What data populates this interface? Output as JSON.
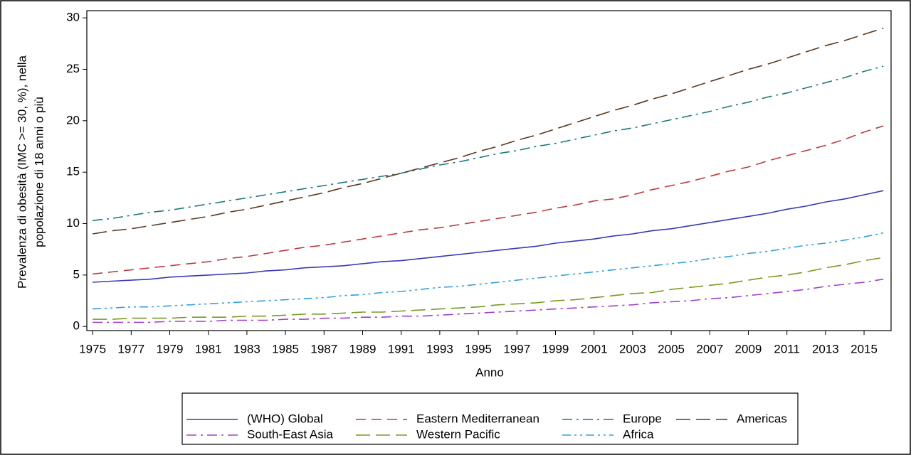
{
  "chart_data": {
    "type": "line",
    "y_label": [
      "Prevalenza di obesità (IMC >= 30, %),  nella",
      "popolazione di 18 anni o più"
    ],
    "x_label": "Anno",
    "x": [
      1975,
      1976,
      1977,
      1978,
      1979,
      1980,
      1981,
      1982,
      1983,
      1984,
      1985,
      1986,
      1987,
      1988,
      1989,
      1990,
      1991,
      1992,
      1993,
      1994,
      1995,
      1996,
      1997,
      1998,
      1999,
      2000,
      2001,
      2002,
      2003,
      2004,
      2005,
      2006,
      2007,
      2008,
      2009,
      2010,
      2011,
      2012,
      2013,
      2014,
      2015,
      2016
    ],
    "xlim": [
      1974.7,
      2016.4
    ],
    "xticks": [
      1975,
      1977,
      1979,
      1981,
      1983,
      1985,
      1987,
      1989,
      1991,
      1993,
      1995,
      1997,
      1999,
      2001,
      2003,
      2005,
      2007,
      2009,
      2011,
      2013,
      2015
    ],
    "ylim": [
      -0.4,
      30.7
    ],
    "yticks": [
      0,
      5,
      10,
      15,
      20,
      25,
      30
    ],
    "series": [
      {
        "name": "(WHO) Global",
        "color": "#3a3ab4",
        "style": "solid",
        "values": [
          4.3,
          4.4,
          4.5,
          4.6,
          4.8,
          4.9,
          5.0,
          5.1,
          5.2,
          5.4,
          5.5,
          5.7,
          5.8,
          5.9,
          6.1,
          6.3,
          6.4,
          6.6,
          6.8,
          7.0,
          7.2,
          7.4,
          7.6,
          7.8,
          8.1,
          8.3,
          8.5,
          8.8,
          9.0,
          9.3,
          9.5,
          9.8,
          10.1,
          10.4,
          10.7,
          11.0,
          11.4,
          11.7,
          12.1,
          12.4,
          12.8,
          13.2
        ]
      },
      {
        "name": "Eastern Mediterranean",
        "color": "#c0383e",
        "style": "dash",
        "values": [
          5.1,
          5.3,
          5.5,
          5.7,
          5.9,
          6.1,
          6.3,
          6.6,
          6.8,
          7.1,
          7.4,
          7.7,
          7.9,
          8.2,
          8.5,
          8.8,
          9.1,
          9.4,
          9.6,
          9.9,
          10.2,
          10.5,
          10.8,
          11.1,
          11.5,
          11.8,
          12.2,
          12.4,
          12.8,
          13.3,
          13.7,
          14.1,
          14.6,
          15.1,
          15.5,
          16.1,
          16.6,
          17.1,
          17.6,
          18.2,
          18.9,
          19.5
        ]
      },
      {
        "name": "Europe",
        "color": "#1a7a78",
        "style": "dashdot",
        "values": [
          10.3,
          10.5,
          10.8,
          11.1,
          11.3,
          11.6,
          11.9,
          12.2,
          12.5,
          12.8,
          13.1,
          13.4,
          13.7,
          14.0,
          14.3,
          14.6,
          14.9,
          15.3,
          15.7,
          16.0,
          16.4,
          16.8,
          17.1,
          17.5,
          17.8,
          18.2,
          18.6,
          19.0,
          19.3,
          19.7,
          20.1,
          20.5,
          20.9,
          21.4,
          21.8,
          22.3,
          22.7,
          23.2,
          23.7,
          24.2,
          24.8,
          25.3
        ]
      },
      {
        "name": "Americas",
        "color": "#5b3a1f",
        "style": "longdash",
        "values": [
          9.0,
          9.3,
          9.5,
          9.8,
          10.1,
          10.4,
          10.7,
          11.1,
          11.4,
          11.8,
          12.2,
          12.6,
          13.0,
          13.5,
          13.9,
          14.4,
          14.9,
          15.4,
          15.9,
          16.4,
          17.0,
          17.5,
          18.1,
          18.6,
          19.2,
          19.8,
          20.4,
          21.0,
          21.5,
          22.1,
          22.6,
          23.2,
          23.8,
          24.4,
          25.0,
          25.5,
          26.1,
          26.7,
          27.3,
          27.8,
          28.4,
          29.0
        ]
      },
      {
        "name": "South-East Asia",
        "color": "#a040d0",
        "style": "dashdot",
        "values": [
          0.4,
          0.4,
          0.4,
          0.4,
          0.5,
          0.5,
          0.5,
          0.6,
          0.6,
          0.6,
          0.7,
          0.7,
          0.8,
          0.8,
          0.9,
          0.9,
          1.0,
          1.0,
          1.1,
          1.2,
          1.3,
          1.4,
          1.5,
          1.6,
          1.7,
          1.8,
          1.9,
          2.0,
          2.1,
          2.3,
          2.4,
          2.5,
          2.7,
          2.8,
          3.0,
          3.2,
          3.4,
          3.6,
          3.9,
          4.1,
          4.3,
          4.6
        ]
      },
      {
        "name": "Western Pacific",
        "color": "#7a9a20",
        "style": "longdash",
        "values": [
          0.7,
          0.7,
          0.8,
          0.8,
          0.8,
          0.9,
          0.9,
          0.9,
          1.0,
          1.0,
          1.1,
          1.2,
          1.2,
          1.3,
          1.4,
          1.4,
          1.5,
          1.6,
          1.7,
          1.8,
          1.9,
          2.1,
          2.2,
          2.3,
          2.5,
          2.6,
          2.8,
          3.0,
          3.2,
          3.3,
          3.6,
          3.8,
          4.0,
          4.2,
          4.5,
          4.8,
          5.0,
          5.3,
          5.7,
          6.0,
          6.4,
          6.7
        ]
      },
      {
        "name": "Africa",
        "color": "#30a0e0",
        "style": "dashdotdot",
        "values": [
          1.7,
          1.8,
          1.9,
          1.9,
          2.0,
          2.1,
          2.2,
          2.3,
          2.4,
          2.5,
          2.6,
          2.7,
          2.8,
          3.0,
          3.1,
          3.3,
          3.4,
          3.6,
          3.8,
          3.9,
          4.1,
          4.3,
          4.5,
          4.7,
          4.9,
          5.1,
          5.3,
          5.5,
          5.7,
          5.9,
          6.1,
          6.3,
          6.6,
          6.8,
          7.1,
          7.3,
          7.6,
          7.9,
          8.1,
          8.4,
          8.7,
          9.1
        ]
      }
    ]
  }
}
